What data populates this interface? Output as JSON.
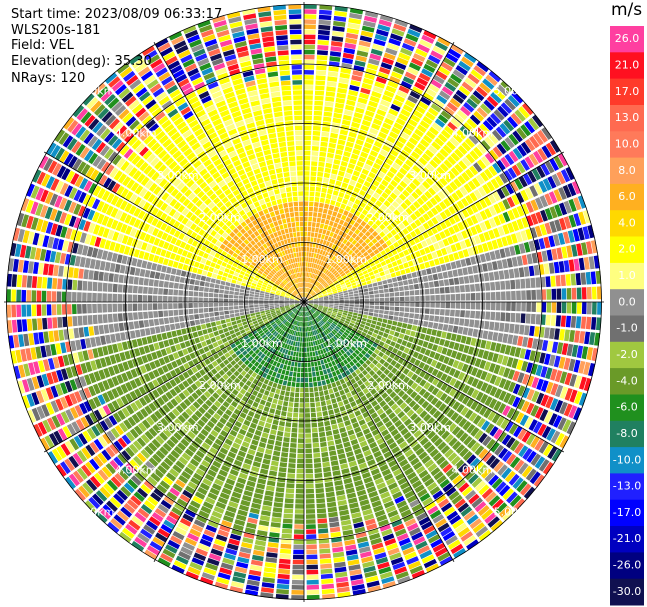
{
  "info": {
    "start_time": "Start time: 2023/08/09 06:33:17",
    "instrument": "WLS200s-181",
    "field": "Field: VEL",
    "elevation": "Elevation(deg): 35.30",
    "nrays": "NRays: 120"
  },
  "colorbar": {
    "unit": "m/s",
    "segments": [
      {
        "label": "26.0",
        "color": "#ff3fa0"
      },
      {
        "label": "21.0",
        "color": "#ff1020"
      },
      {
        "label": "17.0",
        "color": "#ff3a2a"
      },
      {
        "label": "13.0",
        "color": "#ff6a50"
      },
      {
        "label": "10.0",
        "color": "#ff7a5a"
      },
      {
        "label": "8.0",
        "color": "#ffa05a"
      },
      {
        "label": "6.0",
        "color": "#ffb020"
      },
      {
        "label": "4.0",
        "color": "#ffd800"
      },
      {
        "label": "2.0",
        "color": "#ffff00"
      },
      {
        "label": "1.0",
        "color": "#ffff80"
      },
      {
        "label": "0.0",
        "color": "#909090"
      },
      {
        "label": "-1.0",
        "color": "#707070"
      },
      {
        "label": "-2.0",
        "color": "#a0c840"
      },
      {
        "label": "-4.0",
        "color": "#6a9a28"
      },
      {
        "label": "-6.0",
        "color": "#20901e"
      },
      {
        "label": "-8.0",
        "color": "#208060"
      },
      {
        "label": "-10.0",
        "color": "#1090c8"
      },
      {
        "label": "-13.0",
        "color": "#2020ff"
      },
      {
        "label": "-17.0",
        "color": "#0000ff"
      },
      {
        "label": "-21.0",
        "color": "#0000c0"
      },
      {
        "label": "-26.0",
        "color": "#000080"
      },
      {
        "label": "-30.0",
        "color": "#101050"
      }
    ]
  },
  "chart_data": {
    "type": "heatmap",
    "subtype": "ppi-polar",
    "field": "VEL",
    "unit": "m/s",
    "nrays": 120,
    "range_rings_km": [
      1.0,
      2.0,
      3.0,
      4.0,
      5.0
    ],
    "ring_labels": [
      "1.00km",
      "2.00km",
      "3.00km",
      "4.00km",
      "5.00km"
    ],
    "radial_spokes_deg": [
      0,
      30,
      60,
      90,
      120,
      150,
      180,
      210,
      240,
      270,
      300,
      330
    ],
    "grid": true,
    "colorbar_placement": "right",
    "velocity_pattern": {
      "north_sector": "positive 1 to 6 m/s (yellow/orange)",
      "south_sector": "negative -2 to -8 m/s (green)",
      "east_west": "near zero (grey)",
      "outer_ranges": "noise, full colour range"
    }
  }
}
